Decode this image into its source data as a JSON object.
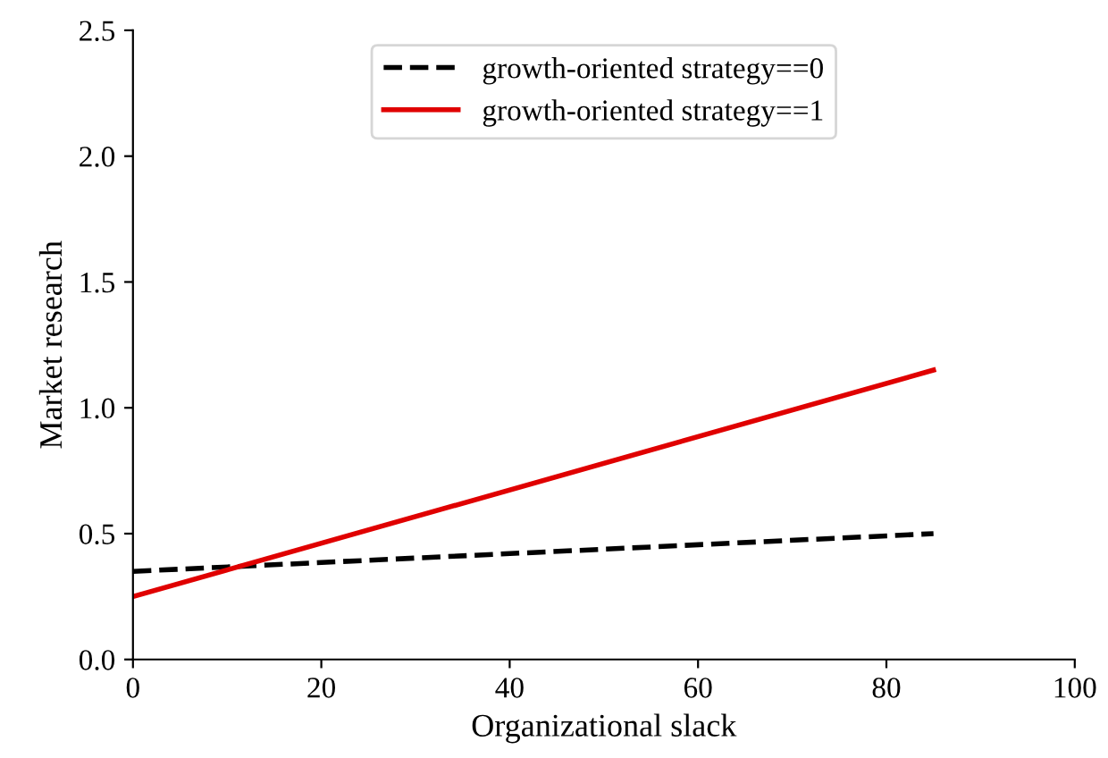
{
  "chart_data": {
    "type": "line",
    "xlabel": "Organizational slack",
    "ylabel": "Market research",
    "x": [
      0,
      85
    ],
    "series": [
      {
        "name": "growth-oriented strategy==0",
        "color": "#000000",
        "values": [
          0.35,
          0.5
        ],
        "line_style": "dashed"
      },
      {
        "name": "growth-oriented strategy==1",
        "color": "#e00000",
        "values": [
          0.25,
          1.15
        ],
        "line_style": "solid"
      }
    ],
    "xlim": [
      0,
      100
    ],
    "ylim": [
      0,
      2.5
    ],
    "xticks": [
      0,
      20,
      40,
      60,
      80,
      100
    ],
    "yticks": [
      {
        "value": 0,
        "label": "0.0"
      },
      {
        "value": 0.5,
        "label": "0.5"
      },
      {
        "value": 1,
        "label": "1.0"
      },
      {
        "value": 1.5,
        "label": "1.5"
      },
      {
        "value": 2,
        "label": "2.0"
      },
      {
        "value": 2.5,
        "label": "2.5"
      }
    ],
    "legend": "top",
    "grid": false,
    "marker": "none"
  }
}
